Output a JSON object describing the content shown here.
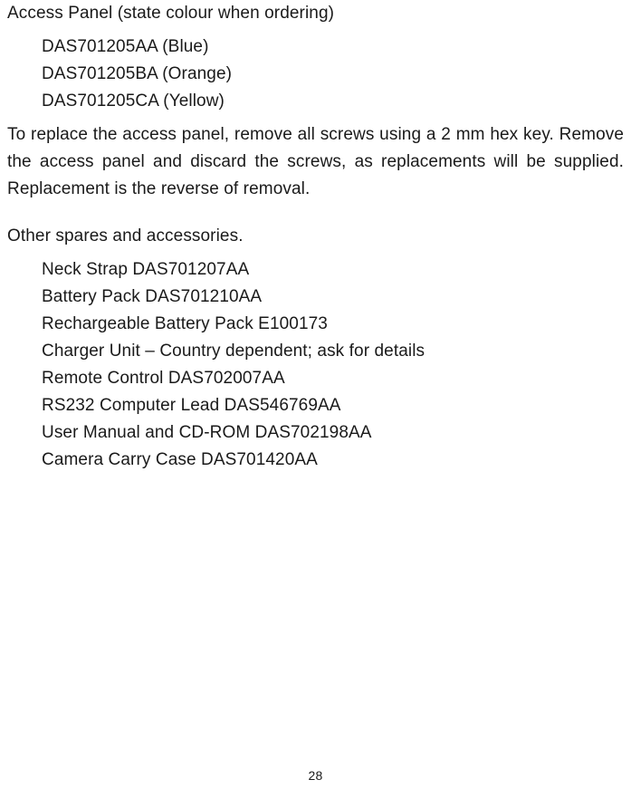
{
  "accessPanel": {
    "heading": "Access Panel (state colour when ordering)",
    "items": [
      "DAS701205AA (Blue)",
      "DAS701205BA (Orange)",
      "DAS701205CA (Yellow)"
    ]
  },
  "replacePara": "To replace the access panel, remove all screws using a 2 mm hex key. Remove the access panel and discard the screws, as replacements will be supplied. Replacement is the reverse of removal.",
  "sparesHeading": "Other spares and accessories.",
  "spares": [
    "Neck Strap DAS701207AA",
    "Battery Pack  DAS701210AA",
    "Rechargeable Battery Pack E100173",
    "Charger Unit – Country dependent; ask for details",
    "Remote Control  DAS702007AA",
    "RS232 Computer Lead DAS546769AA",
    "User Manual and CD-ROM DAS702198AA",
    "Camera Carry Case DAS701420AA"
  ],
  "pageNumber": "28"
}
